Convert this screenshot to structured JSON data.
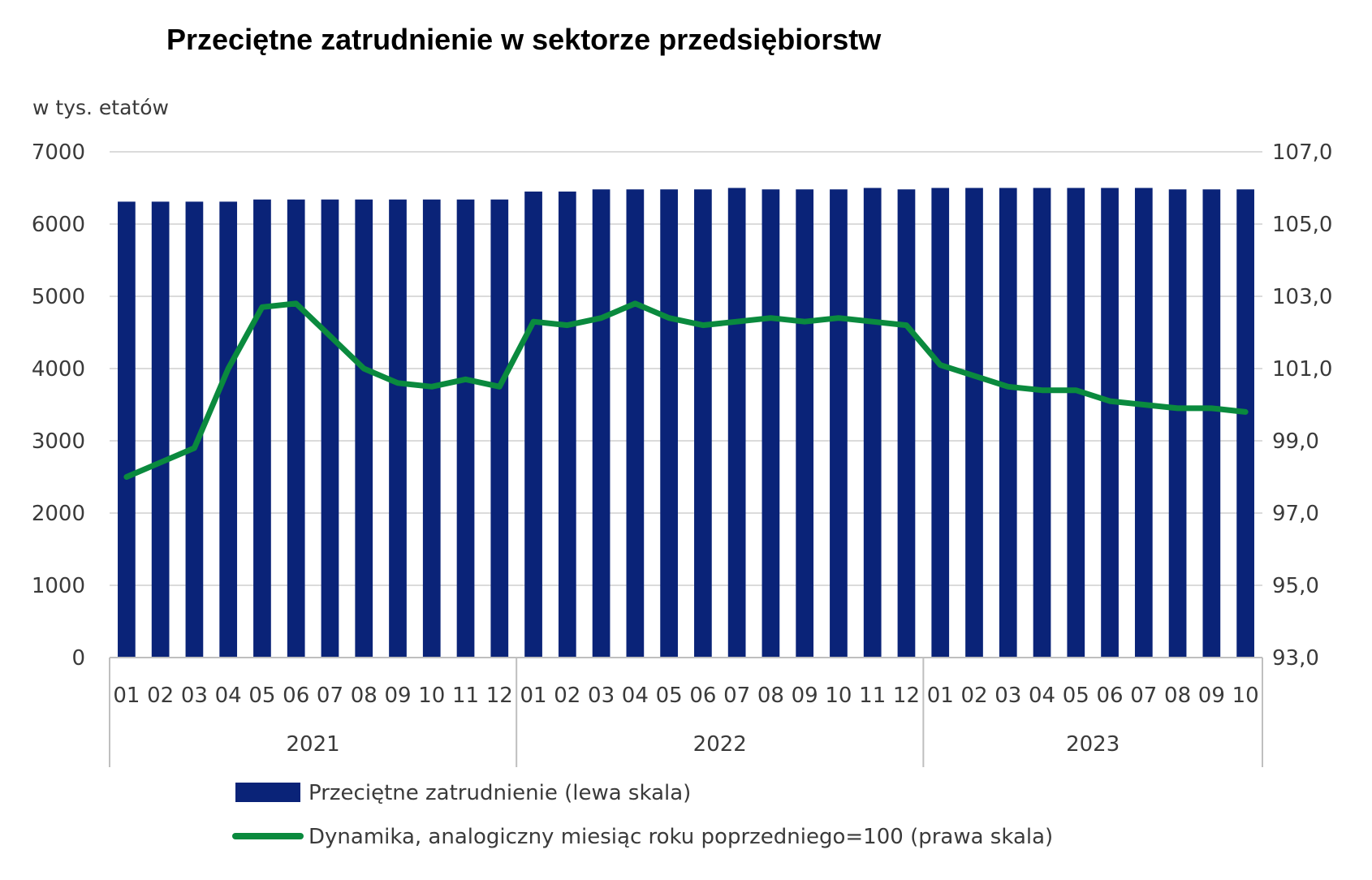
{
  "chart_data": {
    "type": "bar",
    "title": "Przeciętne zatrudnienie w sektorze przedsiębiorstw",
    "ylabel": "w tys. etatów",
    "ylim": [
      0,
      7000
    ],
    "yticks": [
      "0",
      "1000",
      "2000",
      "3000",
      "4000",
      "5000",
      "6000",
      "7000"
    ],
    "y2lim": [
      93.0,
      107.0
    ],
    "y2ticks": [
      "93,0",
      "95,0",
      "97,0",
      "99,0",
      "101,0",
      "103,0",
      "105,0",
      "107,0"
    ],
    "grid": true,
    "legend_position": "bottom",
    "categories": [
      "01",
      "02",
      "03",
      "04",
      "05",
      "06",
      "07",
      "08",
      "09",
      "10",
      "11",
      "12",
      "01",
      "02",
      "03",
      "04",
      "05",
      "06",
      "07",
      "08",
      "09",
      "10",
      "11",
      "12",
      "01",
      "02",
      "03",
      "04",
      "05",
      "06",
      "07",
      "08",
      "09",
      "10"
    ],
    "groups": [
      {
        "label": "2021",
        "count": 12
      },
      {
        "label": "2022",
        "count": 12
      },
      {
        "label": "2023",
        "count": 10
      }
    ],
    "series": [
      {
        "name": "Przeciętne zatrudnienie (lewa skala)",
        "type": "bar",
        "axis": "left",
        "color": "#0a2378",
        "values": [
          6310,
          6310,
          6310,
          6310,
          6340,
          6340,
          6340,
          6340,
          6340,
          6340,
          6340,
          6340,
          6450,
          6450,
          6480,
          6480,
          6480,
          6480,
          6500,
          6480,
          6480,
          6480,
          6500,
          6480,
          6500,
          6500,
          6500,
          6500,
          6500,
          6500,
          6500,
          6480,
          6480,
          6480
        ]
      },
      {
        "name": "Dynamika, analogiczny miesiąc roku poprzedniego=100 (prawa skala)",
        "type": "line",
        "axis": "right",
        "color": "#0a8a3e",
        "values": [
          98.0,
          98.4,
          98.8,
          101.0,
          102.7,
          102.8,
          101.9,
          101.0,
          100.6,
          100.5,
          100.7,
          100.5,
          102.3,
          102.2,
          102.4,
          102.8,
          102.4,
          102.2,
          102.3,
          102.4,
          102.3,
          102.4,
          102.3,
          102.2,
          101.1,
          100.8,
          100.5,
          100.4,
          100.4,
          100.1,
          100.0,
          99.9,
          99.9,
          99.8
        ]
      }
    ]
  }
}
